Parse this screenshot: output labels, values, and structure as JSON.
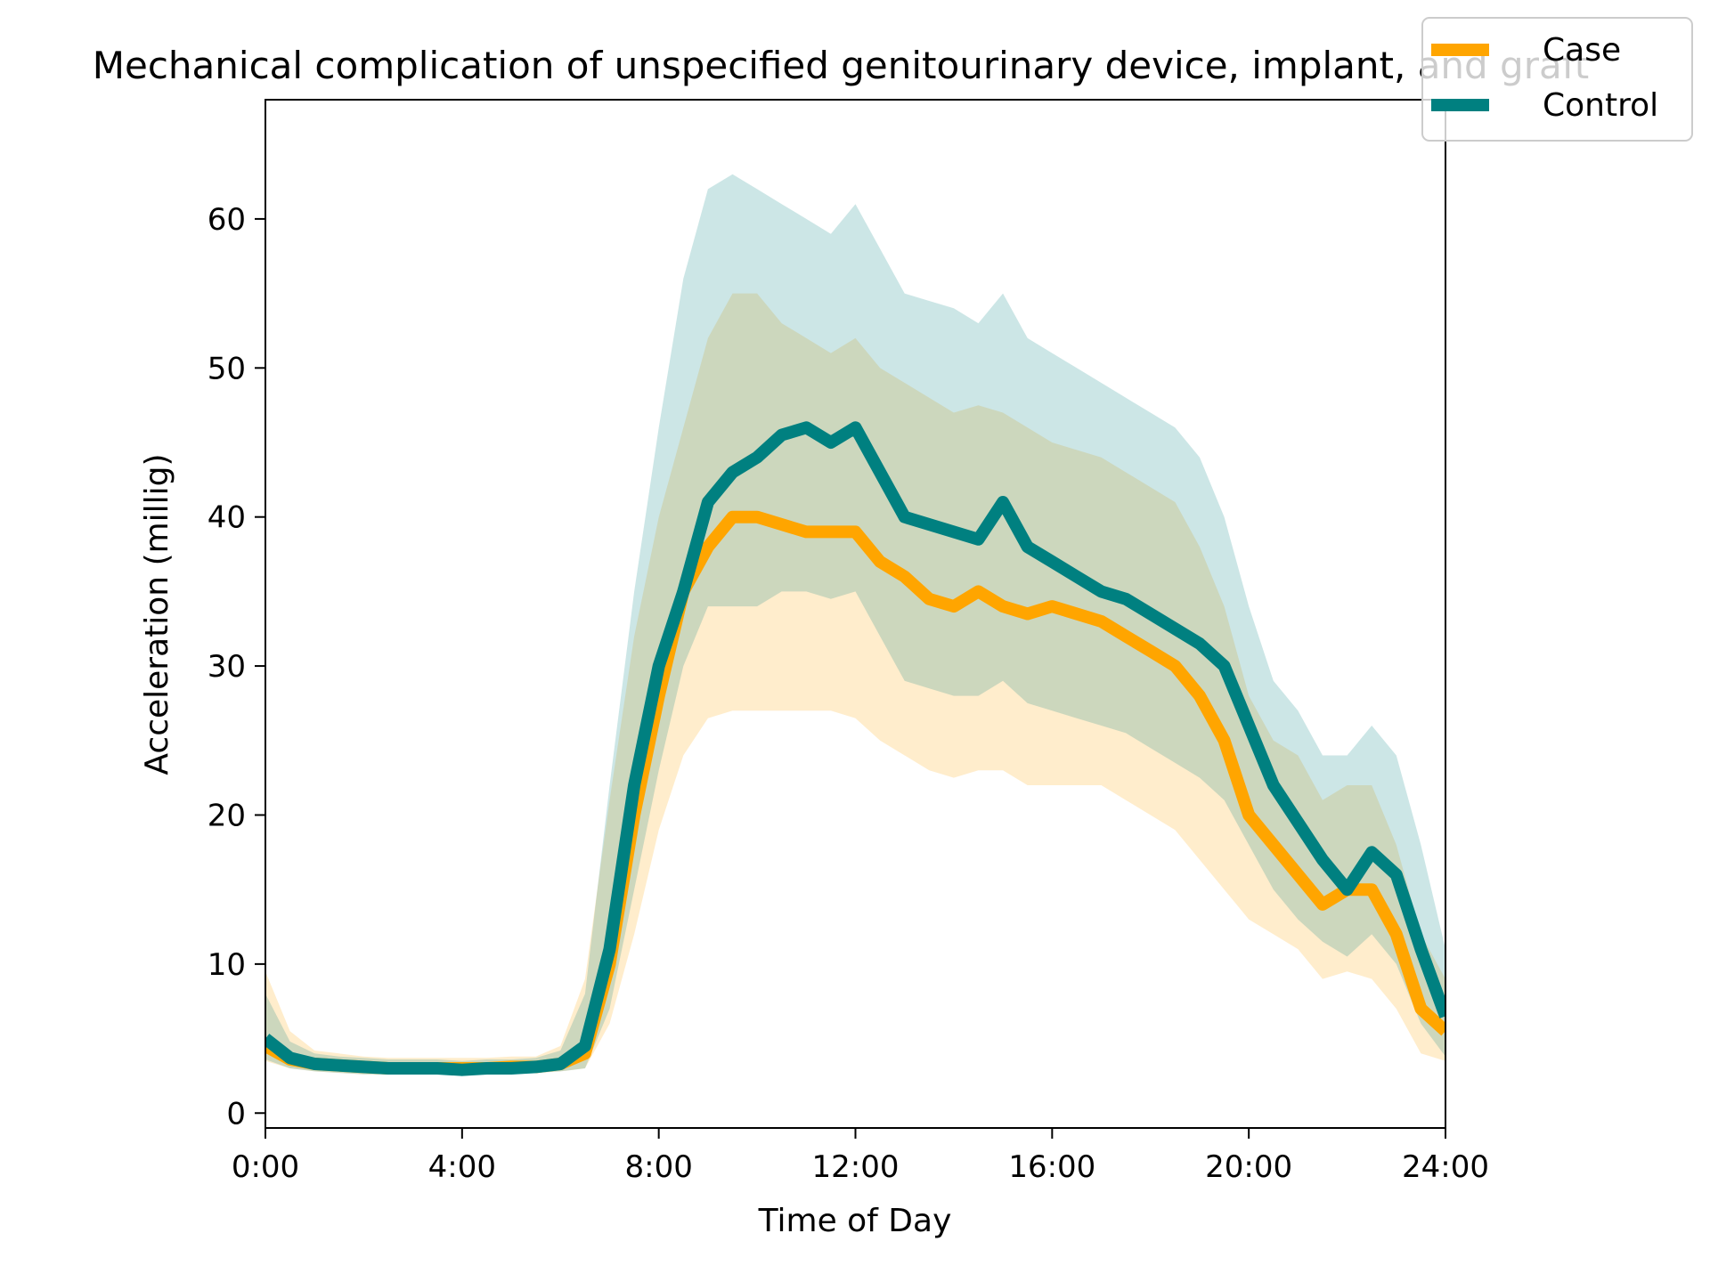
{
  "chart_data": {
    "type": "line",
    "title": "Mechanical complication of unspecified genitourinary device, implant, and graft",
    "xlabel": "Time of Day",
    "ylabel": "Acceleration (millig)",
    "xlim": [
      0,
      24
    ],
    "ylim": [
      -1,
      68
    ],
    "x_ticks": [
      0,
      4,
      8,
      12,
      16,
      20,
      24
    ],
    "x_tick_labels": [
      "0:00",
      "4:00",
      "8:00",
      "12:00",
      "16:00",
      "20:00",
      "24:00"
    ],
    "y_ticks": [
      0,
      10,
      20,
      30,
      40,
      50,
      60
    ],
    "y_tick_labels": [
      "0",
      "10",
      "20",
      "30",
      "40",
      "50",
      "60"
    ],
    "grid": false,
    "legend_position": "upper-right",
    "x": [
      0,
      0.5,
      1,
      1.5,
      2,
      2.5,
      3,
      3.5,
      4,
      4.5,
      5,
      5.5,
      6,
      6.5,
      7,
      7.5,
      8,
      8.5,
      9,
      9.5,
      10,
      10.5,
      11,
      11.5,
      12,
      12.5,
      13,
      13.5,
      14,
      14.5,
      15,
      15.5,
      16,
      16.5,
      17,
      17.5,
      18,
      18.5,
      19,
      19.5,
      20,
      20.5,
      21,
      21.5,
      22,
      22.5,
      23,
      23.5,
      24
    ],
    "series": [
      {
        "name": "Case",
        "color": "#FFA500",
        "band_opacity": 0.2,
        "values": [
          4.5,
          3.6,
          3.3,
          3.2,
          3.1,
          3.0,
          3.0,
          3.0,
          3.0,
          3.0,
          3.1,
          3.1,
          3.3,
          4.0,
          10.0,
          20.0,
          28.0,
          35.0,
          38.0,
          40.0,
          40.0,
          39.5,
          39.0,
          39.0,
          39.0,
          37.0,
          36.0,
          34.5,
          34.0,
          35.0,
          34.0,
          33.5,
          34.0,
          33.5,
          33.0,
          32.0,
          31.0,
          30.0,
          28.0,
          25.0,
          20.0,
          18.0,
          16.0,
          14.0,
          15.0,
          15.0,
          12.0,
          7.0,
          5.5
        ],
        "lower": [
          3.5,
          3.0,
          2.8,
          2.7,
          2.6,
          2.6,
          2.6,
          2.6,
          2.6,
          2.6,
          2.7,
          2.7,
          2.8,
          3.0,
          6.0,
          12.0,
          19.0,
          24.0,
          26.5,
          27.0,
          27.0,
          27.0,
          27.0,
          27.0,
          26.5,
          25.0,
          24.0,
          23.0,
          22.5,
          23.0,
          23.0,
          22.0,
          22.0,
          22.0,
          22.0,
          21.0,
          20.0,
          19.0,
          17.0,
          15.0,
          13.0,
          12.0,
          11.0,
          9.0,
          9.5,
          9.0,
          7.0,
          4.0,
          3.5
        ],
        "upper": [
          9.5,
          5.5,
          4.2,
          4.0,
          3.8,
          3.7,
          3.7,
          3.7,
          3.7,
          3.7,
          3.8,
          3.8,
          4.5,
          9.0,
          21.0,
          32.0,
          40.0,
          46.0,
          52.0,
          55.0,
          55.0,
          53.0,
          52.0,
          51.0,
          52.0,
          50.0,
          49.0,
          48.0,
          47.0,
          47.5,
          47.0,
          46.0,
          45.0,
          44.5,
          44.0,
          43.0,
          42.0,
          41.0,
          38.0,
          34.0,
          28.0,
          25.0,
          24.0,
          21.0,
          22.0,
          22.0,
          18.0,
          12.0,
          9.0
        ]
      },
      {
        "name": "Control",
        "color": "#008080",
        "band_opacity": 0.2,
        "values": [
          5.0,
          3.7,
          3.3,
          3.2,
          3.1,
          3.0,
          3.0,
          3.0,
          2.9,
          3.0,
          3.0,
          3.1,
          3.3,
          4.5,
          11.0,
          22.0,
          30.0,
          35.0,
          41.0,
          43.0,
          44.0,
          45.5,
          46.0,
          45.0,
          46.0,
          43.0,
          40.0,
          39.5,
          39.0,
          38.5,
          41.0,
          38.0,
          37.0,
          36.0,
          35.0,
          34.5,
          33.5,
          32.5,
          31.5,
          30.0,
          26.0,
          22.0,
          19.5,
          17.0,
          15.0,
          17.5,
          16.0,
          11.0,
          6.5
        ],
        "lower": [
          3.6,
          3.0,
          2.8,
          2.7,
          2.6,
          2.6,
          2.6,
          2.6,
          2.6,
          2.6,
          2.6,
          2.7,
          2.8,
          3.0,
          7.0,
          15.0,
          23.0,
          30.0,
          34.0,
          34.0,
          34.0,
          35.0,
          35.0,
          34.5,
          35.0,
          32.0,
          29.0,
          28.5,
          28.0,
          28.0,
          29.0,
          27.5,
          27.0,
          26.5,
          26.0,
          25.5,
          24.5,
          23.5,
          22.5,
          21.0,
          18.0,
          15.0,
          13.0,
          11.5,
          10.5,
          12.0,
          10.0,
          6.0,
          3.8
        ],
        "upper": [
          8.0,
          4.8,
          4.0,
          3.8,
          3.7,
          3.6,
          3.6,
          3.6,
          3.5,
          3.6,
          3.6,
          3.7,
          4.2,
          8.0,
          22.0,
          35.0,
          46.0,
          56.0,
          62.0,
          63.0,
          62.0,
          61.0,
          60.0,
          59.0,
          61.0,
          58.0,
          55.0,
          54.5,
          54.0,
          53.0,
          55.0,
          52.0,
          51.0,
          50.0,
          49.0,
          48.0,
          47.0,
          46.0,
          44.0,
          40.0,
          34.0,
          29.0,
          27.0,
          24.0,
          24.0,
          26.0,
          24.0,
          18.0,
          11.0
        ]
      }
    ]
  }
}
